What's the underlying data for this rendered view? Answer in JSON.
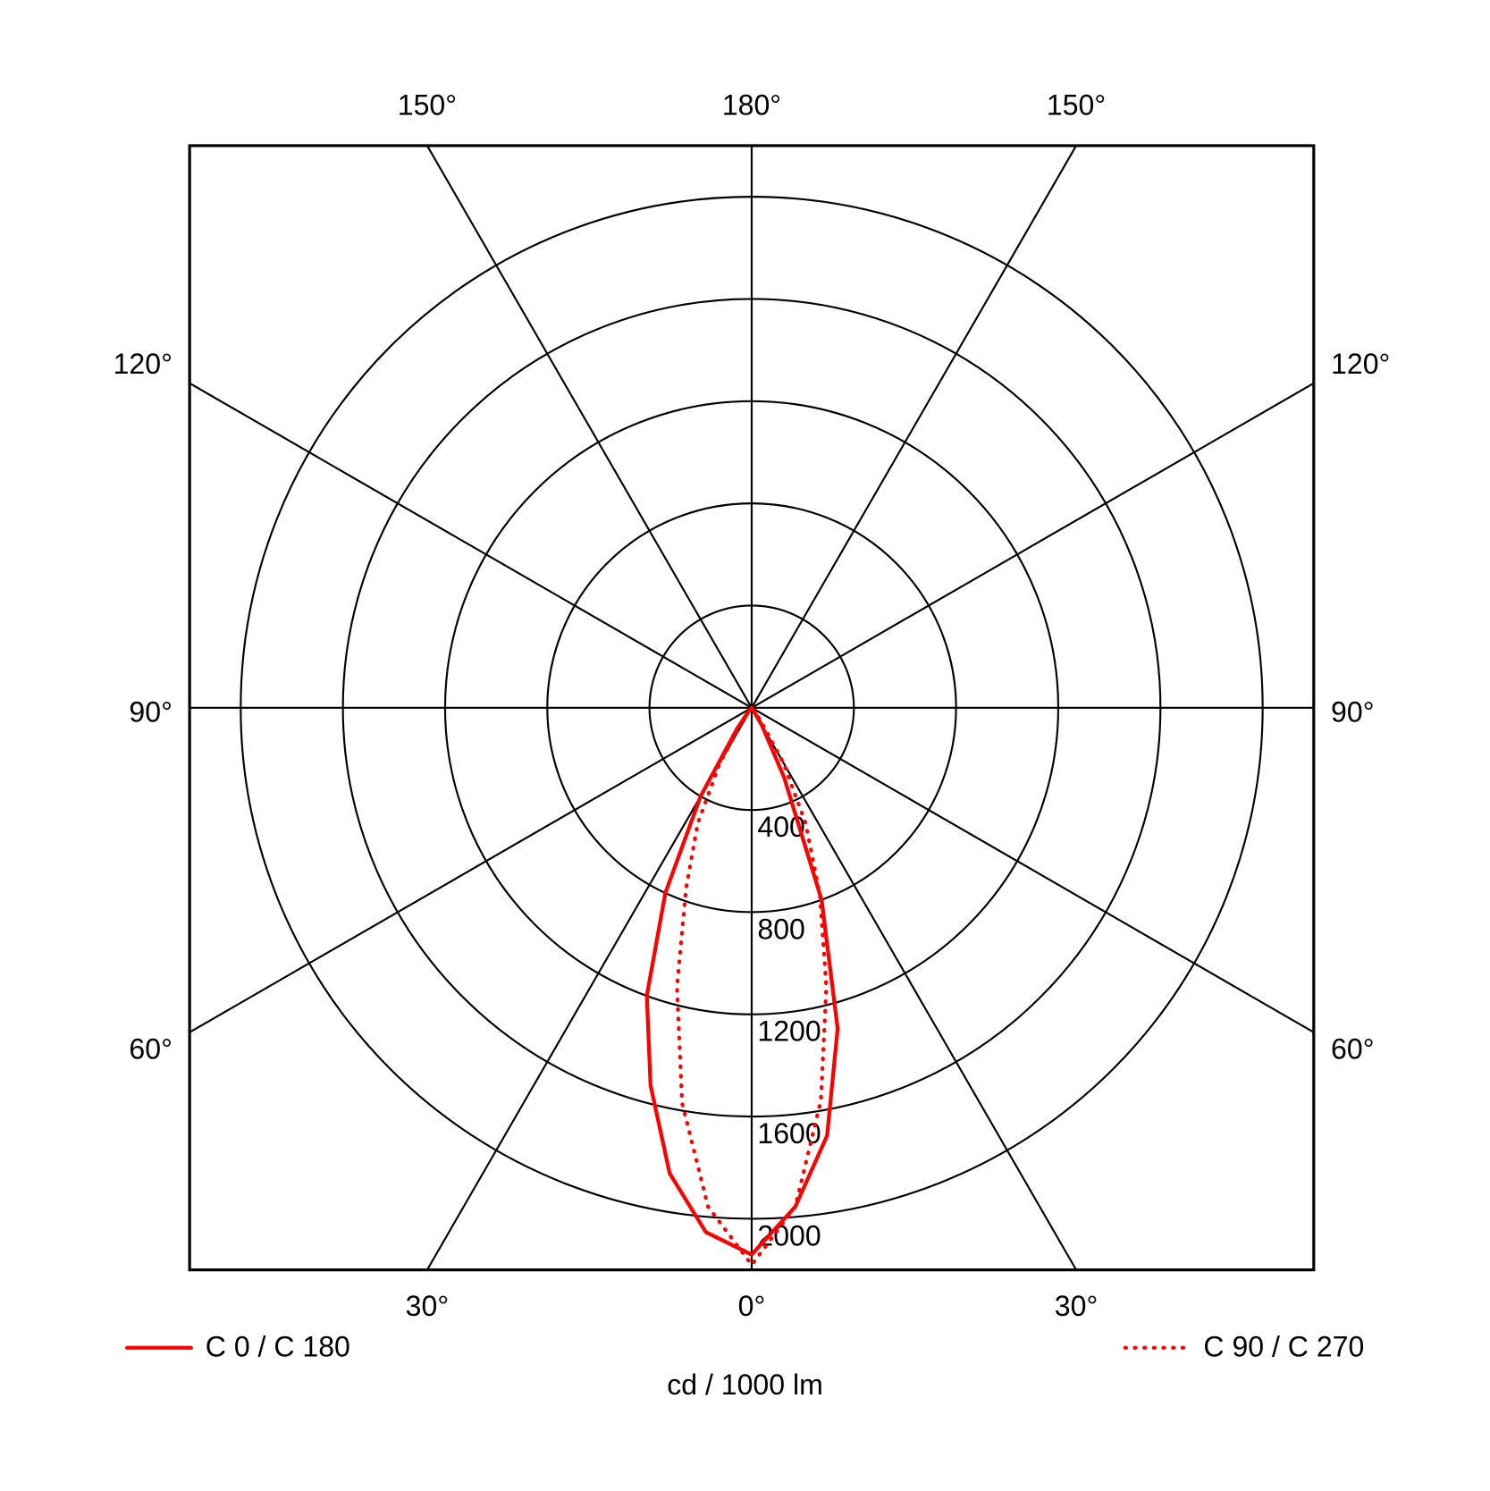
{
  "chart_data": {
    "type": "polar",
    "x": [
      -90,
      -85,
      -80,
      -75,
      -70,
      -65,
      -60,
      -55,
      -50,
      -45,
      -40,
      -35,
      -30,
      -25,
      -20,
      -15,
      -10,
      -5,
      0,
      5,
      10,
      15,
      20,
      25,
      30,
      35,
      40,
      45,
      50,
      55,
      60,
      65,
      70,
      75,
      80,
      85,
      90
    ],
    "series": [
      {
        "name": "C 0 / C 180",
        "color": "#ff0000",
        "dash": false,
        "values": [
          0,
          0,
          0,
          0,
          0,
          0,
          0,
          0,
          0,
          0,
          20,
          100,
          400,
          800,
          1200,
          1530,
          1850,
          2060,
          2140,
          1960,
          1700,
          1300,
          800,
          300,
          80,
          10,
          0,
          0,
          0,
          0,
          0,
          0,
          0,
          0,
          0,
          0,
          0
        ]
      },
      {
        "name": "C 90 / C 270",
        "color": "#ff0000",
        "dash": true,
        "values": [
          0,
          0,
          0,
          0,
          0,
          0,
          0,
          0,
          0,
          0,
          0,
          60,
          250,
          500,
          750,
          1130,
          1570,
          1960,
          2180,
          1960,
          1560,
          1130,
          780,
          500,
          250,
          60,
          0,
          0,
          0,
          0,
          0,
          0,
          0,
          0,
          0,
          0,
          0
        ]
      }
    ],
    "rlim": [
      0,
      2200
    ],
    "rticks": [
      400,
      800,
      1200,
      1600,
      2000
    ],
    "angle_ticks": [
      {
        "value": -150,
        "label": "150°"
      },
      {
        "value": 180,
        "label": "180°"
      },
      {
        "value": 150,
        "label": "150°"
      },
      {
        "value": -120,
        "label": "120°"
      },
      {
        "value": 120,
        "label": "120°"
      },
      {
        "value": -90,
        "label": "90°"
      },
      {
        "value": 90,
        "label": "90°"
      },
      {
        "value": -60,
        "label": "60°"
      },
      {
        "value": 60,
        "label": "60°"
      },
      {
        "value": -30,
        "label": "30°"
      },
      {
        "value": 0,
        "label": "0°"
      },
      {
        "value": 30,
        "label": "30°"
      }
    ],
    "r_label": "cd / 1000 lm",
    "grid": true
  }
}
